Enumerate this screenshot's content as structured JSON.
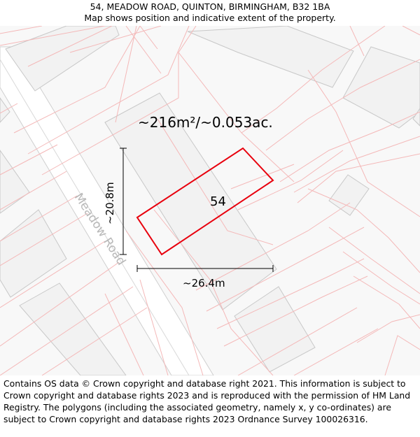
{
  "header": {
    "address": "54, MEADOW ROAD, QUINTON, BIRMINGHAM, B32 1BA",
    "subtitle": "Map shows position and indicative extent of the property."
  },
  "map": {
    "area_label": "~216m²/~0.053ac.",
    "plot_number": "54",
    "height_label": "~20.8m",
    "width_label": "~26.4m",
    "road_name": "Meadow Road",
    "colors": {
      "background": "#f8f8f8",
      "building_fill": "#f2f2f2",
      "building_stroke": "#c8c8c8",
      "boundary_line": "#f4b8b8",
      "road_fill": "#ffffff",
      "highlight": "#e8000d",
      "measure_line": "#000000"
    }
  },
  "footer": {
    "copyright": "Contains OS data © Crown copyright and database right 2021. This information is subject to Crown copyright and database rights 2023 and is reproduced with the permission of HM Land Registry. The polygons (including the associated geometry, namely x, y co-ordinates) are subject to Crown copyright and database rights 2023 Ordnance Survey 100026316."
  }
}
